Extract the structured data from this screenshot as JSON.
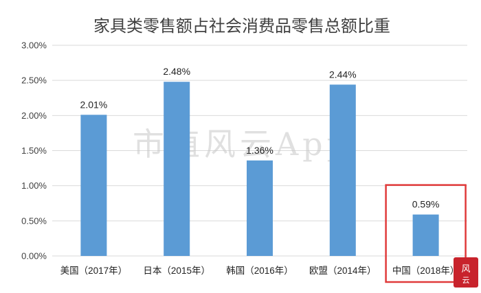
{
  "chart_data": {
    "type": "bar",
    "title": "家具类零售额占社会消费品零售总额比重",
    "categories": [
      "美国（2017年）",
      "日本（2015年）",
      "韩国（2016年）",
      "欧盟（2014年）",
      "中国（2018年）"
    ],
    "values": [
      2.01,
      2.48,
      1.36,
      2.44,
      0.59
    ],
    "data_labels": [
      "2.01%",
      "2.48%",
      "1.36%",
      "2.44%",
      "0.59%"
    ],
    "ylim": [
      0,
      3.0
    ],
    "yticks": [
      "0.00%",
      "0.50%",
      "1.00%",
      "1.50%",
      "2.00%",
      "2.50%",
      "3.00%"
    ],
    "ytick_values": [
      0,
      0.5,
      1.0,
      1.5,
      2.0,
      2.5,
      3.0
    ],
    "xlabel": "",
    "ylabel": "",
    "grid": true,
    "highlight_index": 4,
    "colors": {
      "bar": "#5b9bd5",
      "grid": "#d9d9d9",
      "highlight_box": "#e03a3a"
    }
  },
  "watermark": "市值风云App"
}
